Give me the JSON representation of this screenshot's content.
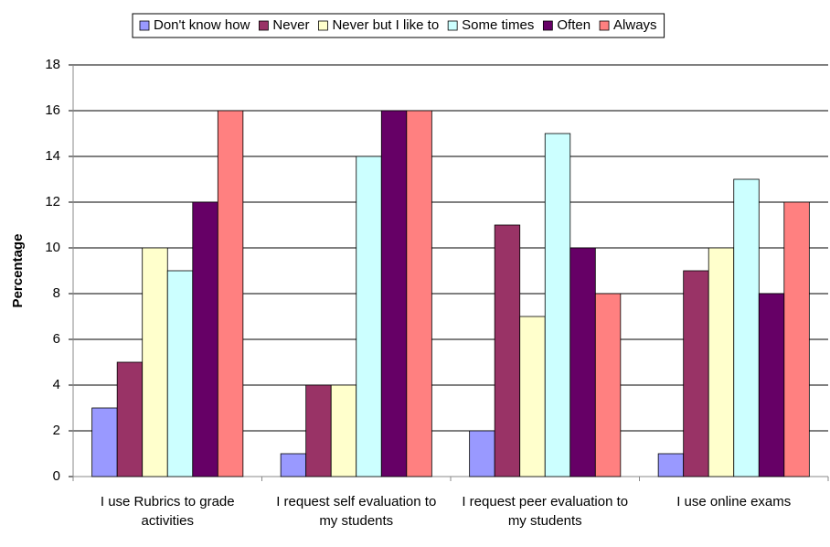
{
  "chart_data": {
    "type": "bar",
    "y_label": "Percentage",
    "categories": [
      "I use Rubrics to grade activities",
      "I request self evaluation to my students",
      "I request peer evaluation to my students",
      "I use online exams"
    ],
    "series": [
      {
        "name": "Don't know how",
        "color": "#9999ff",
        "values": [
          3,
          1,
          2,
          1
        ]
      },
      {
        "name": "Never",
        "color": "#993366",
        "values": [
          5,
          4,
          11,
          9
        ]
      },
      {
        "name": "Never but I like to",
        "color": "#ffffcc",
        "values": [
          10,
          4,
          7,
          10
        ]
      },
      {
        "name": "Some times",
        "color": "#ccffff",
        "values": [
          9,
          14,
          15,
          13
        ]
      },
      {
        "name": "Often",
        "color": "#660066",
        "values": [
          12,
          16,
          10,
          8
        ]
      },
      {
        "name": "Always",
        "color": "#ff8080",
        "values": [
          16,
          16,
          8,
          12
        ]
      }
    ],
    "ylim": [
      0,
      18
    ],
    "yticks": [
      0,
      2,
      4,
      6,
      8,
      10,
      12,
      14,
      16,
      18
    ],
    "grid": true,
    "legend": "top"
  }
}
